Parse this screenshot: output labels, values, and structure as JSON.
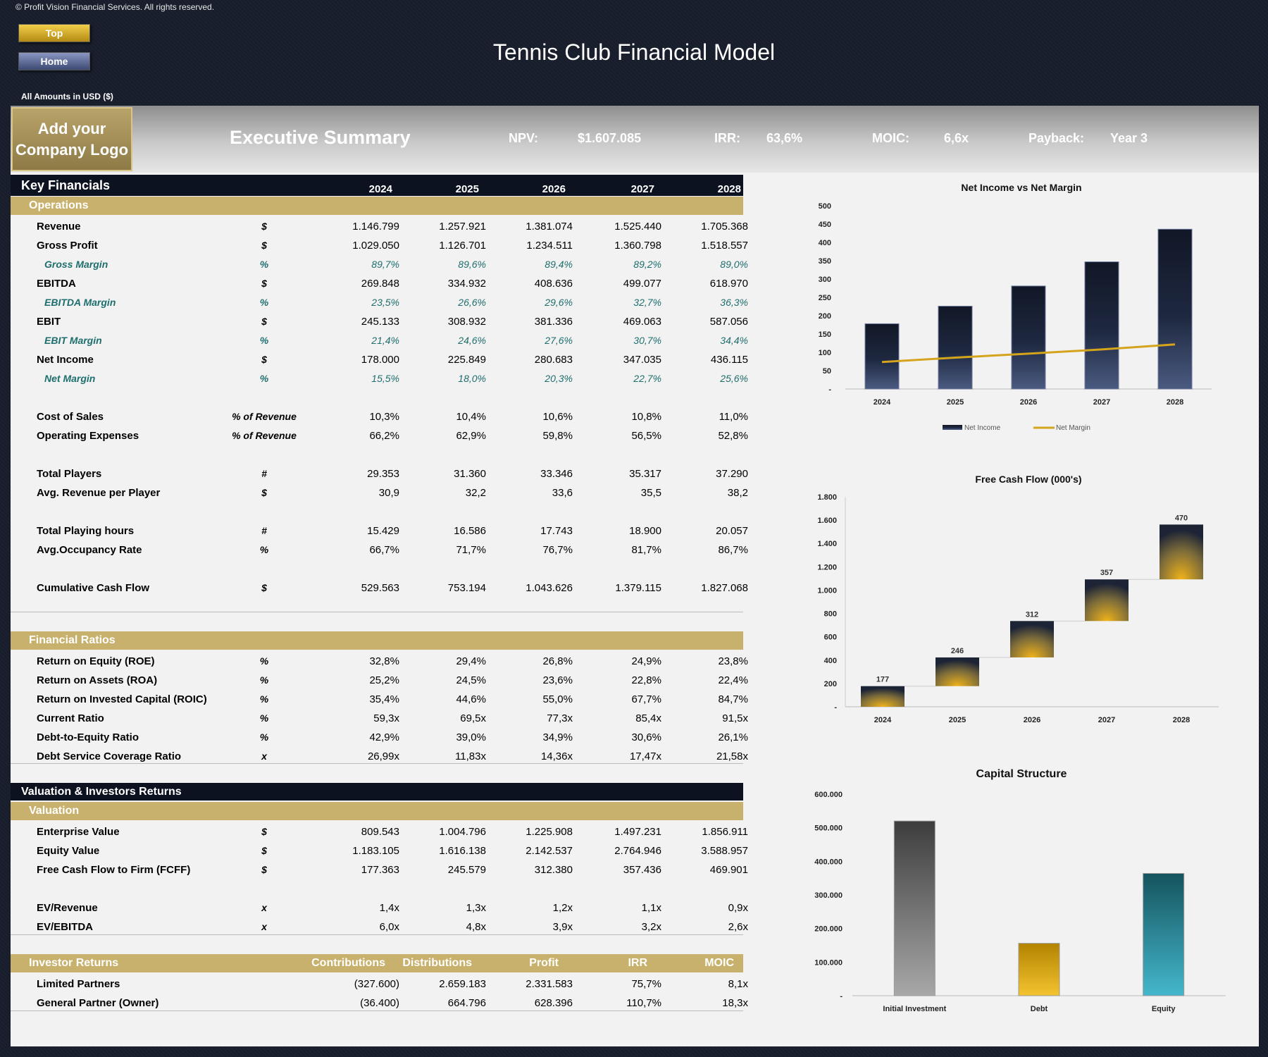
{
  "copyright": "© Profit Vision Financial Services. All rights reserved.",
  "nav": {
    "top": "Top",
    "home": "Home"
  },
  "title": "Tennis Club Financial Model",
  "amounts_note": "All Amounts in  USD ($)",
  "banner": {
    "logo_line1": "Add your",
    "logo_line2": "Company Logo",
    "section": "Executive Summary",
    "npv_label": "NPV:",
    "npv_value": "$1.607.085",
    "irr_label": "IRR:",
    "irr_value": "63,6%",
    "moic_label": "MOIC:",
    "moic_value": "6,6x",
    "payback_label": "Payback:",
    "payback_value": "Year 3"
  },
  "key_financials": {
    "title": "Key Financials",
    "years": [
      "2024",
      "2025",
      "2026",
      "2027",
      "2028"
    ],
    "operations_label": "Operations",
    "rows": [
      {
        "label": "Revenue",
        "unit": "$",
        "values": [
          "1.146.799",
          "1.257.921",
          "1.381.074",
          "1.525.440",
          "1.705.368"
        ],
        "italic": false
      },
      {
        "label": "Gross Profit",
        "unit": "$",
        "values": [
          "1.029.050",
          "1.126.701",
          "1.234.511",
          "1.360.798",
          "1.518.557"
        ],
        "italic": false
      },
      {
        "label": "Gross Margin",
        "unit": "%",
        "values": [
          "89,7%",
          "89,6%",
          "89,4%",
          "89,2%",
          "89,0%"
        ],
        "italic": true
      },
      {
        "label": "EBITDA",
        "unit": "$",
        "values": [
          "269.848",
          "334.932",
          "408.636",
          "499.077",
          "618.970"
        ],
        "italic": false
      },
      {
        "label": "EBITDA Margin",
        "unit": "%",
        "values": [
          "23,5%",
          "26,6%",
          "29,6%",
          "32,7%",
          "36,3%"
        ],
        "italic": true
      },
      {
        "label": "EBIT",
        "unit": "$",
        "values": [
          "245.133",
          "308.932",
          "381.336",
          "469.063",
          "587.056"
        ],
        "italic": false
      },
      {
        "label": "EBIT Margin",
        "unit": "%",
        "values": [
          "21,4%",
          "24,6%",
          "27,6%",
          "30,7%",
          "34,4%"
        ],
        "italic": true
      },
      {
        "label": "Net Income",
        "unit": "$",
        "values": [
          "178.000",
          "225.849",
          "280.683",
          "347.035",
          "436.115"
        ],
        "italic": false
      },
      {
        "label": "Net Margin",
        "unit": "%",
        "values": [
          "15,5%",
          "18,0%",
          "20,3%",
          "22,7%",
          "25,6%"
        ],
        "italic": true
      },
      null,
      {
        "label": "Cost of Sales",
        "unit": "% of Revenue",
        "values": [
          "10,3%",
          "10,4%",
          "10,6%",
          "10,8%",
          "11,0%"
        ],
        "italic": false
      },
      {
        "label": "Operating Expenses",
        "unit": "% of Revenue",
        "values": [
          "66,2%",
          "62,9%",
          "59,8%",
          "56,5%",
          "52,8%"
        ],
        "italic": false
      },
      null,
      {
        "label": "Total Players",
        "unit": "#",
        "values": [
          "29.353",
          "31.360",
          "33.346",
          "35.317",
          "37.290"
        ],
        "italic": false
      },
      {
        "label": "Avg. Revenue per Player",
        "unit": "$",
        "values": [
          "30,9",
          "32,2",
          "33,6",
          "35,5",
          "38,2"
        ],
        "italic": false
      },
      null,
      {
        "label": "Total Playing hours",
        "unit": "#",
        "values": [
          "15.429",
          "16.586",
          "17.743",
          "18.900",
          "20.057"
        ],
        "italic": false
      },
      {
        "label": "Avg.Occupancy Rate",
        "unit": "%",
        "values": [
          "66,7%",
          "71,7%",
          "76,7%",
          "81,7%",
          "86,7%"
        ],
        "italic": false
      },
      null,
      {
        "label": "Cumulative Cash Flow",
        "unit": "$",
        "values": [
          "529.563",
          "753.194",
          "1.043.626",
          "1.379.115",
          "1.827.068"
        ],
        "italic": false
      }
    ]
  },
  "financial_ratios": {
    "label": "Financial Ratios",
    "rows": [
      {
        "label": "Return on Equity (ROE)",
        "unit": "%",
        "values": [
          "32,8%",
          "29,4%",
          "26,8%",
          "24,9%",
          "23,8%"
        ]
      },
      {
        "label": "Return on Assets (ROA)",
        "unit": "%",
        "values": [
          "25,2%",
          "24,5%",
          "23,6%",
          "22,8%",
          "22,4%"
        ]
      },
      {
        "label": "Return on Invested Capital (ROIC)",
        "unit": "%",
        "values": [
          "35,4%",
          "44,6%",
          "55,0%",
          "67,7%",
          "84,7%"
        ]
      },
      {
        "label": "Current Ratio",
        "unit": "%",
        "values": [
          "59,3x",
          "69,5x",
          "77,3x",
          "85,4x",
          "91,5x"
        ]
      },
      {
        "label": "Debt-to-Equity Ratio",
        "unit": "%",
        "values": [
          "42,9%",
          "39,0%",
          "34,9%",
          "30,6%",
          "26,1%"
        ]
      },
      {
        "label": "Debt Service Coverage Ratio",
        "unit": "x",
        "values": [
          "26,99x",
          "11,83x",
          "14,36x",
          "17,47x",
          "21,58x"
        ]
      }
    ]
  },
  "valuation": {
    "title": "Valuation & Investors Returns",
    "label": "Valuation",
    "rows": [
      {
        "label": "Enterprise Value",
        "unit": "$",
        "values": [
          "809.543",
          "1.004.796",
          "1.225.908",
          "1.497.231",
          "1.856.911"
        ]
      },
      {
        "label": "Equity Value",
        "unit": "$",
        "values": [
          "1.183.105",
          "1.616.138",
          "2.142.537",
          "2.764.946",
          "3.588.957"
        ]
      },
      {
        "label": "Free Cash Flow to Firm (FCFF)",
        "unit": "$",
        "values": [
          "177.363",
          "245.579",
          "312.380",
          "357.436",
          "469.901"
        ]
      },
      null,
      {
        "label": "EV/Revenue",
        "unit": "x",
        "values": [
          "1,4x",
          "1,3x",
          "1,2x",
          "1,1x",
          "0,9x"
        ]
      },
      {
        "label": "EV/EBITDA",
        "unit": "x",
        "values": [
          "6,0x",
          "4,8x",
          "3,9x",
          "3,2x",
          "2,6x"
        ]
      }
    ]
  },
  "investor_returns": {
    "label": "Investor Returns",
    "columns": [
      "Contributions",
      "Distributions",
      "Profit",
      "IRR",
      "MOIC"
    ],
    "rows": [
      {
        "label": "Limited Partners",
        "values": [
          "(327.600)",
          "2.659.183",
          "2.331.583",
          "75,7%",
          "8,1x"
        ]
      },
      {
        "label": "General Partner (Owner)",
        "values": [
          "(36.400)",
          "664.796",
          "628.396",
          "110,7%",
          "18,3x"
        ]
      }
    ]
  },
  "colors": {
    "navy": "#1b2236",
    "gold": "#c8b16c",
    "line": "#d4a51c",
    "teal": "#2a8fa0",
    "grey": "#7a7a7a"
  },
  "chart_data": [
    {
      "type": "bar",
      "title": "Net Income vs Net Margin",
      "categories": [
        "2024",
        "2025",
        "2026",
        "2027",
        "2028"
      ],
      "series": [
        {
          "name": "Net Income",
          "values": [
            178,
            226,
            281,
            347,
            436
          ]
        },
        {
          "name": "Net Margin",
          "values": [
            0.155,
            0.18,
            0.203,
            0.227,
            0.256
          ],
          "type": "line"
        }
      ],
      "yticks": [
        "-",
        "50",
        "100",
        "150",
        "200",
        "250",
        "300",
        "350",
        "400",
        "450",
        "500"
      ],
      "ylim": [
        0,
        500
      ],
      "legend": "bottom"
    },
    {
      "type": "bar",
      "title": "Free Cash Flow (000's)",
      "categories": [
        "2024",
        "2025",
        "2026",
        "2027",
        "2028"
      ],
      "values": [
        177,
        246,
        312,
        357,
        470
      ],
      "labels": [
        "177",
        "246",
        "312",
        "357",
        "470"
      ],
      "yticks": [
        "-",
        "200",
        "400",
        "600",
        "800",
        "1.000",
        "1.200",
        "1.400",
        "1.600",
        "1.800"
      ],
      "ylim": [
        0,
        1800
      ]
    },
    {
      "type": "bar",
      "title": "Capital Structure",
      "categories": [
        "Initial Investment",
        "Debt",
        "Equity"
      ],
      "values": [
        520000,
        156000,
        364000
      ],
      "yticks": [
        "-",
        "100.000",
        "200.000",
        "300.000",
        "400.000",
        "500.000",
        "600.000"
      ],
      "ylim": [
        0,
        600000
      ]
    }
  ]
}
